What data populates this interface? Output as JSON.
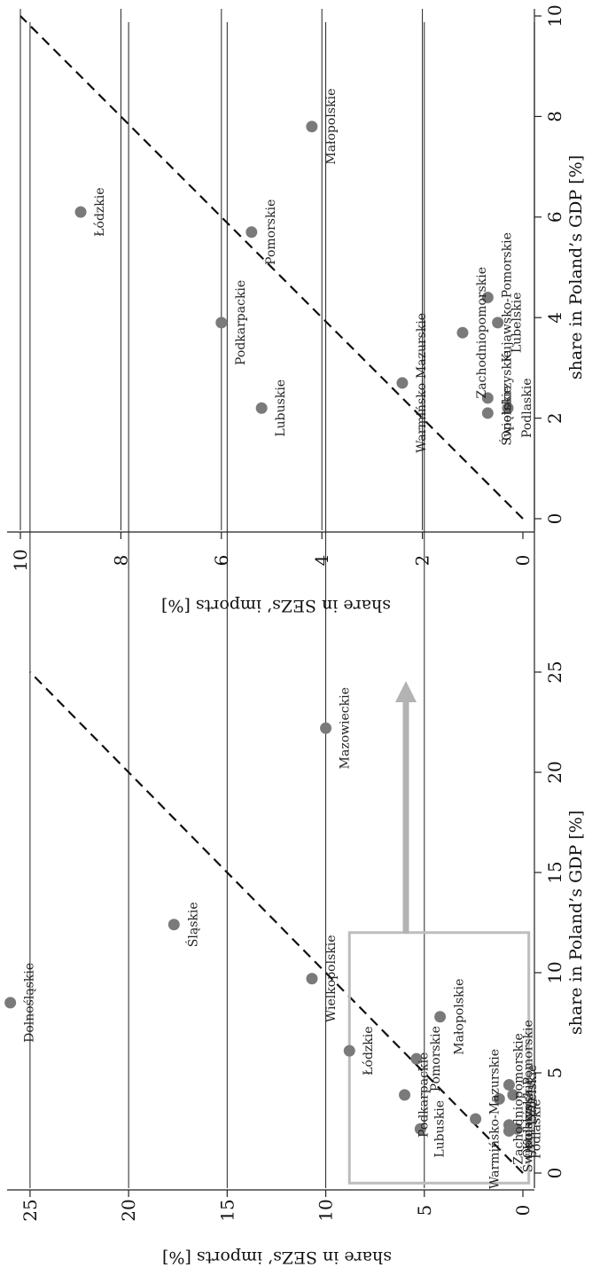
{
  "chart_data": [
    {
      "type": "scatter",
      "xlabel": "share in Poland’s GDP [%]",
      "ylabel": "share in SEZs’ imports [%]",
      "xlim": [
        0,
        25
      ],
      "ylim": [
        0,
        26
      ],
      "xticks": [
        "0",
        "5",
        "10",
        "15",
        "20",
        "25"
      ],
      "yticks": [
        "0",
        "5",
        "10",
        "15",
        "20",
        "25"
      ],
      "grid": "horizontal",
      "reference_line": "y = x (dashed)",
      "points": [
        {
          "label": "Dolnośląskie",
          "x": 8.5,
          "y": 26.0
        },
        {
          "label": "Śląskie",
          "x": 12.4,
          "y": 17.7
        },
        {
          "label": "Mazowieckie",
          "x": 22.2,
          "y": 10.0
        },
        {
          "label": "Wielkopolskie",
          "x": 9.7,
          "y": 10.7
        },
        {
          "label": "Łódzkie",
          "x": 6.1,
          "y": 8.8
        },
        {
          "label": "Podkarpackie",
          "x": 3.9,
          "y": 6.0
        },
        {
          "label": "Pomorskie",
          "x": 5.7,
          "y": 5.4
        },
        {
          "label": "Lubuskie",
          "x": 2.2,
          "y": 5.2
        },
        {
          "label": "Małopolskie",
          "x": 7.8,
          "y": 4.2
        },
        {
          "label": "Warmińsko-Mazurskie",
          "x": 2.7,
          "y": 2.4
        },
        {
          "label": "Zachodniopomorskie",
          "x": 3.7,
          "y": 1.2
        },
        {
          "label": "Kujawsko-Pomorskie",
          "x": 4.4,
          "y": 0.7
        },
        {
          "label": "Lubelskie",
          "x": 3.9,
          "y": 0.5
        },
        {
          "label": "Opolskie",
          "x": 2.1,
          "y": 0.7
        },
        {
          "label": "Świętokrzyskie",
          "x": 2.4,
          "y": 0.7
        },
        {
          "label": "Podlaskie",
          "x": 2.2,
          "y": 0.3
        }
      ],
      "zoom_box": {
        "x": [
          -0.5,
          12
        ],
        "y": [
          -0.3,
          8.8
        ]
      }
    },
    {
      "type": "scatter",
      "xlabel": "share in Poland’s GDP [%]",
      "ylabel": "share in SEZs’ imports [%]",
      "xlim": [
        0,
        10
      ],
      "ylim": [
        0,
        10
      ],
      "xticks": [
        "0",
        "2",
        "4",
        "6",
        "8",
        "10"
      ],
      "yticks": [
        "0",
        "2",
        "4",
        "6",
        "8",
        "10"
      ],
      "grid": "horizontal",
      "reference_line": "y = x (dashed)",
      "points": [
        {
          "label": "Łódzkie",
          "x": 6.1,
          "y": 8.8
        },
        {
          "label": "Małopolskie",
          "x": 7.8,
          "y": 4.2
        },
        {
          "label": "Pomorskie",
          "x": 5.7,
          "y": 5.4
        },
        {
          "label": "Podkarpackie",
          "x": 3.9,
          "y": 6.0
        },
        {
          "label": "Lubuskie",
          "x": 2.2,
          "y": 5.2
        },
        {
          "label": "Warmińsko-Mazurskie",
          "x": 2.7,
          "y": 2.4
        },
        {
          "label": "Zachodniopomorskie",
          "x": 3.7,
          "y": 1.2
        },
        {
          "label": "Kujawsko-Pomorskie",
          "x": 4.4,
          "y": 0.7
        },
        {
          "label": "Lubelskie",
          "x": 3.9,
          "y": 0.5
        },
        {
          "label": "Świętokrzyskie",
          "x": 2.4,
          "y": 0.7
        },
        {
          "label": "Opolskie",
          "x": 2.1,
          "y": 0.7
        },
        {
          "label": "Podlaskie",
          "x": 2.2,
          "y": 0.3
        }
      ]
    }
  ],
  "colors": {
    "point": "#7a7a7a",
    "grid": "#222222",
    "zoom_box": "#bdbdbd",
    "arrow": "#b3b3b3",
    "dash": "#111111"
  }
}
